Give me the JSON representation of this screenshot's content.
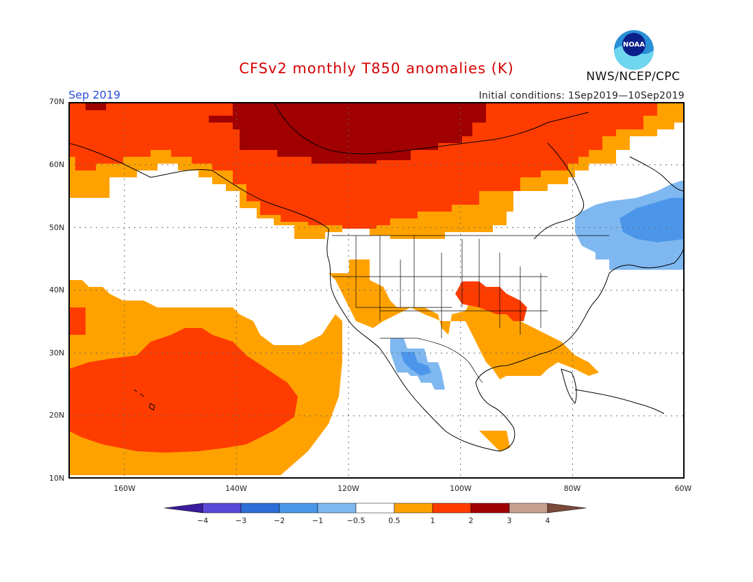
{
  "header": {
    "title": "CFSv2 monthly T850 anomalies (K)",
    "month": "Sep 2019",
    "initial_conditions": "Initial conditions: 1Sep2019—10Sep2019",
    "agency": "NWS/NCEP/CPC",
    "logo_text": "NOAA"
  },
  "map": {
    "lat_labels": [
      "70N",
      "60N",
      "50N",
      "40N",
      "30N",
      "20N",
      "10N"
    ],
    "lon_labels": [
      "160W",
      "140W",
      "120W",
      "100W",
      "80W",
      "60W"
    ],
    "lon_range": [
      -170,
      -60
    ],
    "lat_range": [
      10,
      70
    ],
    "grid": true
  },
  "colorbar": {
    "labels": [
      "−4",
      "−3",
      "−2",
      "−1",
      "−0.5",
      "0.5",
      "1",
      "2",
      "3",
      "4"
    ],
    "colors": [
      "#3a1c9e",
      "#5a48d8",
      "#2d6fd6",
      "#4b96ea",
      "#7fb8f0",
      "#ffffff",
      "#ffa200",
      "#ff3c00",
      "#a00000",
      "#c8a090",
      "#7a4a3a"
    ]
  },
  "colors": {
    "anom_0_5_1": "#ffa200",
    "anom_1_2": "#ff3c00",
    "anom_2_3": "#a00000",
    "anom_neg_0_5_1": "#7fb8f0",
    "anom_neg_1_2": "#4b96ea",
    "title": "#d40000",
    "month": "#2a4cd8"
  }
}
